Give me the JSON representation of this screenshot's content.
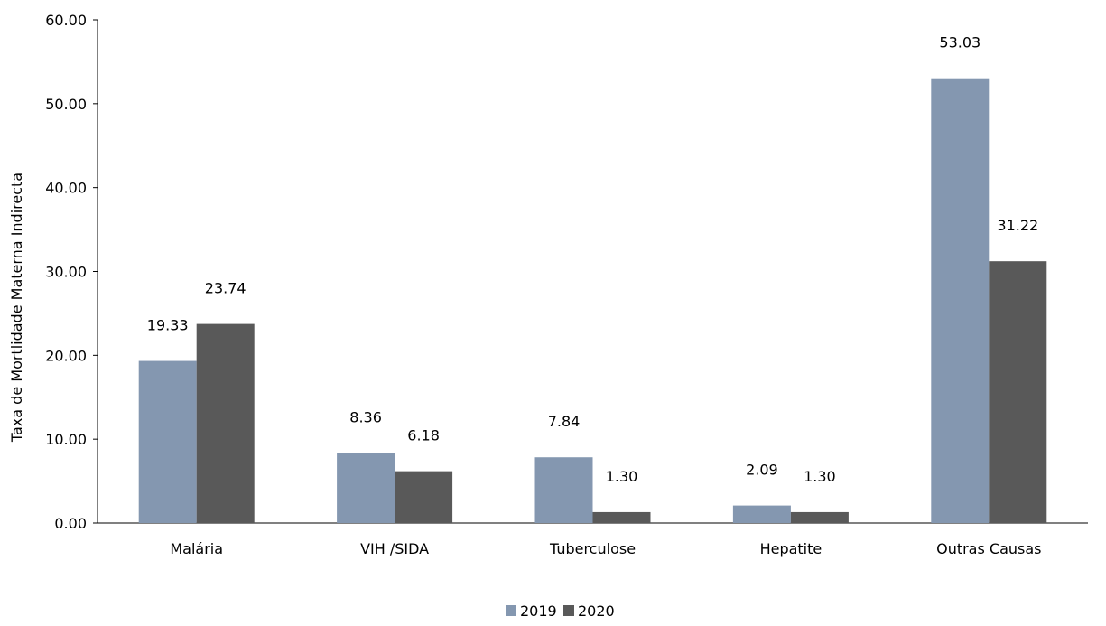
{
  "chart_data": {
    "type": "bar",
    "title": "",
    "xlabel": "",
    "ylabel": "Taxa de Mortlidade Materna Indirecta",
    "ylim": [
      0,
      60
    ],
    "yticks": [
      "0.00",
      "10.00",
      "20.00",
      "30.00",
      "40.00",
      "50.00",
      "60.00"
    ],
    "grid": false,
    "legend_position": "bottom",
    "categories": [
      "Malária",
      "VIH /SIDA",
      "Tuberculose",
      "Hepatite",
      "Outras Causas"
    ],
    "series": [
      {
        "name": "2019",
        "color": "#8497b0",
        "values": [
          19.33,
          8.36,
          7.84,
          2.09,
          53.03
        ],
        "labels": [
          "19.33",
          "8.36",
          "7.84",
          "2.09",
          "53.03"
        ]
      },
      {
        "name": "2020",
        "color": "#595959",
        "values": [
          23.74,
          6.18,
          1.3,
          1.3,
          31.22
        ],
        "labels": [
          "23.74",
          "6.18",
          "1.30",
          "1.30",
          "31.22"
        ]
      }
    ]
  }
}
